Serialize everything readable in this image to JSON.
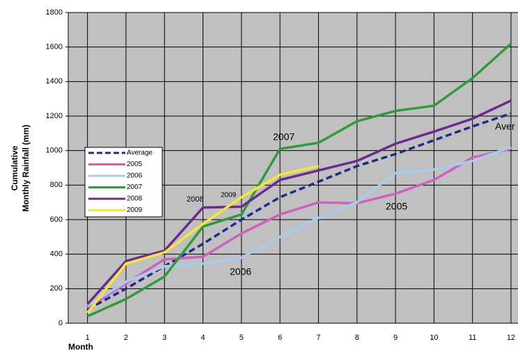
{
  "chart_data": {
    "type": "line",
    "y_label": [
      "Cumulative",
      "Monthly Rainfall (mm)"
    ],
    "x_label": "Month",
    "x": [
      1,
      2,
      3,
      4,
      5,
      6,
      7,
      8,
      9,
      10,
      11,
      12
    ],
    "xlim": [
      0.5,
      12.5
    ],
    "xticks": [
      1,
      2,
      3,
      4,
      5,
      6,
      7,
      8,
      9,
      10,
      11,
      12
    ],
    "ylim": [
      0,
      1800
    ],
    "yticks": [
      0,
      200,
      400,
      600,
      800,
      1000,
      1200,
      1400,
      1600,
      1800
    ],
    "grid": true,
    "series": [
      {
        "name": "Average",
        "color": "#1f2a8a",
        "dashed": true,
        "values": [
          80,
          200,
          330,
          460,
          600,
          730,
          820,
          910,
          980,
          1060,
          1140,
          1215
        ]
      },
      {
        "name": "2005",
        "color": "#d25fbf",
        "values": [
          90,
          230,
          370,
          385,
          520,
          630,
          700,
          695,
          750,
          830,
          960,
          1010
        ]
      },
      {
        "name": "2006",
        "color": "#a6cdee",
        "values": [
          100,
          240,
          330,
          345,
          380,
          500,
          610,
          700,
          870,
          890,
          940,
          1020
        ]
      },
      {
        "name": "2007",
        "color": "#2e9b3a",
        "values": [
          40,
          140,
          270,
          560,
          630,
          1010,
          1045,
          1170,
          1230,
          1260,
          1420,
          1620
        ]
      },
      {
        "name": "2008",
        "color": "#6b2a8e",
        "values": [
          110,
          360,
          420,
          670,
          675,
          830,
          885,
          940,
          1040,
          1110,
          1185,
          1290
        ]
      },
      {
        "name": "2009",
        "color": "#f2e930",
        "values": [
          60,
          345,
          410,
          575,
          730,
          860,
          910,
          null,
          null,
          null,
          null,
          null
        ]
      }
    ],
    "annotations": [
      "2007",
      "2008",
      "2009",
      "2006",
      "2005",
      "Aver"
    ]
  }
}
